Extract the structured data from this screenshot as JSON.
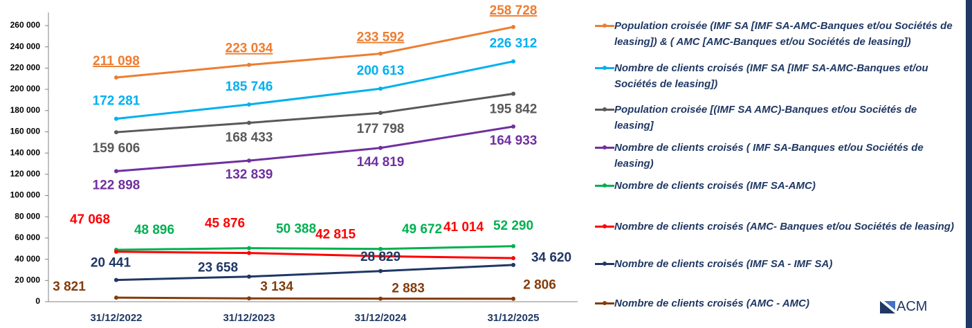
{
  "chart_data": {
    "type": "line",
    "categories": [
      "31/12/2022",
      "31/12/2023",
      "31/12/2024",
      "31/12/2025"
    ],
    "ylim": [
      0,
      260000
    ],
    "yticks": [
      0,
      {
        "value": 20000,
        "label": "20 000"
      },
      {
        "value": 40000,
        "label": "40 000"
      },
      {
        "value": 60000,
        "label": "60 000"
      },
      {
        "value": 80000,
        "label": "80 000"
      },
      {
        "value": 100000,
        "label": "100 000"
      },
      {
        "value": 120000,
        "label": "120 000"
      },
      {
        "value": 140000,
        "label": "140 000"
      },
      {
        "value": 160000,
        "label": "160 000"
      },
      {
        "value": 180000,
        "label": "180 000"
      },
      {
        "value": 200000,
        "label": "200 000"
      },
      {
        "value": 220000,
        "label": "220 000"
      },
      {
        "value": 240000,
        "label": "240 000"
      },
      {
        "value": 260000,
        "label": "260 000"
      }
    ],
    "legend": "right",
    "logo": "ACM",
    "series": [
      {
        "name": "Population croisée (IMF SA [IMF SA-AMC-Banques et/ou Sociétés de leasing]) & ( AMC [AMC-Banques et/ou Sociétés de leasing])",
        "color": "#ed7d31",
        "values": [
          211098,
          223034,
          233592,
          258728
        ],
        "value_labels": [
          "211 098",
          "223 034",
          "233 592",
          "258 728"
        ]
      },
      {
        "name": "Nombre de clients croisés  (IMF SA [IMF SA-AMC-Banques et/ou Sociétés de leasing])",
        "color": "#00b0f0",
        "values": [
          172281,
          185746,
          200613,
          226312
        ],
        "value_labels": [
          "172 281",
          "185 746",
          "200 613",
          "226 312"
        ]
      },
      {
        "name": "Population croisée  [(IMF SA AMC)-Banques et/ou Sociétés de leasing]",
        "color": "#595959",
        "values": [
          159606,
          168433,
          177798,
          195842
        ],
        "value_labels": [
          "159 606",
          "168 433",
          "177 798",
          "195 842"
        ]
      },
      {
        "name": "Nombre de clients croisés  ( IMF SA-Banques et/ou Sociétés de leasing)",
        "color": "#7030a0",
        "values": [
          122898,
          132839,
          144819,
          164933
        ],
        "value_labels": [
          "122 898",
          "132 839",
          "144 819",
          "164 933"
        ]
      },
      {
        "name": "Nombre de clients croisés (IMF SA-AMC)",
        "color": "#00b050",
        "values": [
          48896,
          50388,
          49672,
          52290
        ],
        "value_labels": [
          "48 896",
          "50 388",
          "49 672",
          "52 290"
        ]
      },
      {
        "name": "Nombre de clients croisés (AMC- Banques et/ou Sociétés de leasing)",
        "color": "#ff0000",
        "values": [
          47068,
          45876,
          42815,
          41014
        ],
        "value_labels": [
          "47 068",
          "45 876",
          "42 815",
          "41 014"
        ]
      },
      {
        "name": "Nombre de clients croisés (IMF SA - IMF SA)",
        "color": "#1f3864",
        "values": [
          20441,
          23658,
          28829,
          34620
        ],
        "value_labels": [
          "20 441",
          "23 658",
          "28 829",
          "34 620"
        ]
      },
      {
        "name": "Nombre de clients croisés (AMC - AMC)",
        "color": "#843c0c",
        "values": [
          3821,
          3134,
          2883,
          2806
        ],
        "value_labels": [
          "3 821",
          "3 134",
          "2 883",
          "2 806"
        ]
      }
    ]
  }
}
